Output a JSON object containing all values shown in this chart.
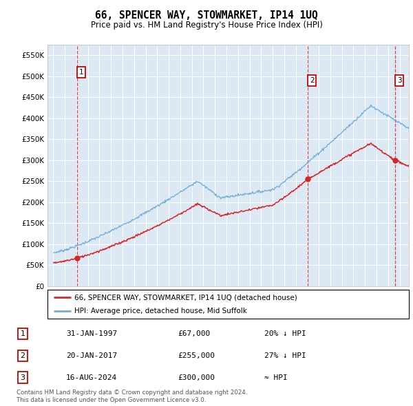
{
  "title": "66, SPENCER WAY, STOWMARKET, IP14 1UQ",
  "subtitle": "Price paid vs. HM Land Registry's House Price Index (HPI)",
  "legend_line1": "66, SPENCER WAY, STOWMARKET, IP14 1UQ (detached house)",
  "legend_line2": "HPI: Average price, detached house, Mid Suffolk",
  "footnote1": "Contains HM Land Registry data © Crown copyright and database right 2024.",
  "footnote2": "This data is licensed under the Open Government Licence v3.0.",
  "transactions": [
    {
      "num": 1,
      "date": "31-JAN-1997",
      "price": 67000,
      "hpi_note": "20% ↓ HPI",
      "year": 1997.08
    },
    {
      "num": 2,
      "date": "20-JAN-2017",
      "price": 255000,
      "hpi_note": "27% ↓ HPI",
      "year": 2017.05
    },
    {
      "num": 3,
      "date": "16-AUG-2024",
      "price": 300000,
      "hpi_note": "≈ HPI",
      "year": 2024.62
    }
  ],
  "hpi_color": "#6baed6",
  "price_color": "#d62728",
  "bg_color": "#dce9f5",
  "grid_color": "#ffffff",
  "ylim": [
    0,
    575000
  ],
  "yticks": [
    0,
    50000,
    100000,
    150000,
    200000,
    250000,
    300000,
    350000,
    400000,
    450000,
    500000,
    550000
  ],
  "xlim_start": 1994.5,
  "xlim_end": 2025.8,
  "xtick_years": [
    1995,
    1996,
    1997,
    1998,
    1999,
    2000,
    2001,
    2002,
    2003,
    2004,
    2005,
    2006,
    2007,
    2008,
    2009,
    2010,
    2011,
    2012,
    2013,
    2014,
    2015,
    2016,
    2017,
    2018,
    2019,
    2020,
    2021,
    2022,
    2023,
    2024,
    2025
  ]
}
